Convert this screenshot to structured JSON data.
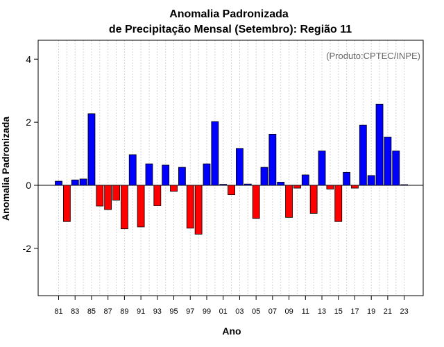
{
  "chart_data": {
    "type": "bar",
    "title": "Anomalia Padronizada",
    "subtitle": "de Precipitação Mensal (Setembro): Região 11",
    "xlabel": "Ano",
    "ylabel": "Anomalia Padronizada",
    "credit": "(Produto:CPTEC/INPE)",
    "ylim": [
      -3.5,
      4.6
    ],
    "yticks": [
      -2,
      0,
      2,
      4
    ],
    "ytick_labels": [
      "-2",
      "0",
      "2",
      "4"
    ],
    "categories": [
      "81",
      "82",
      "83",
      "84",
      "85",
      "86",
      "87",
      "88",
      "89",
      "90",
      "91",
      "92",
      "93",
      "94",
      "95",
      "96",
      "97",
      "98",
      "99",
      "00",
      "01",
      "02",
      "03",
      "04",
      "05",
      "06",
      "07",
      "08",
      "09",
      "10",
      "11",
      "12",
      "13",
      "14",
      "15",
      "16",
      "17",
      "18",
      "19",
      "20",
      "21",
      "22",
      "23"
    ],
    "xtick_labels": [
      "81",
      "83",
      "85",
      "87",
      "89",
      "91",
      "93",
      "95",
      "97",
      "99",
      "01",
      "03",
      "05",
      "07",
      "09",
      "11",
      "13",
      "15",
      "17",
      "19",
      "21",
      "23"
    ],
    "values": [
      0.13,
      -1.15,
      0.17,
      0.2,
      2.27,
      -0.66,
      -0.77,
      -0.47,
      -1.38,
      0.97,
      -1.32,
      0.68,
      -0.65,
      0.64,
      -0.19,
      0.57,
      -1.36,
      -1.55,
      0.68,
      2.02,
      0.03,
      -0.3,
      1.17,
      0.04,
      -1.05,
      0.57,
      1.62,
      0.1,
      -1.02,
      -0.09,
      0.33,
      -0.89,
      1.09,
      -0.12,
      -1.15,
      0.41,
      -0.09,
      1.91,
      0.31,
      2.57,
      1.53,
      1.09,
      0.02
    ],
    "colors": {
      "positive": "#0000ff",
      "negative": "#ff0000",
      "grid": "#d3d3d3",
      "axis": "#000000"
    },
    "grid": true
  }
}
